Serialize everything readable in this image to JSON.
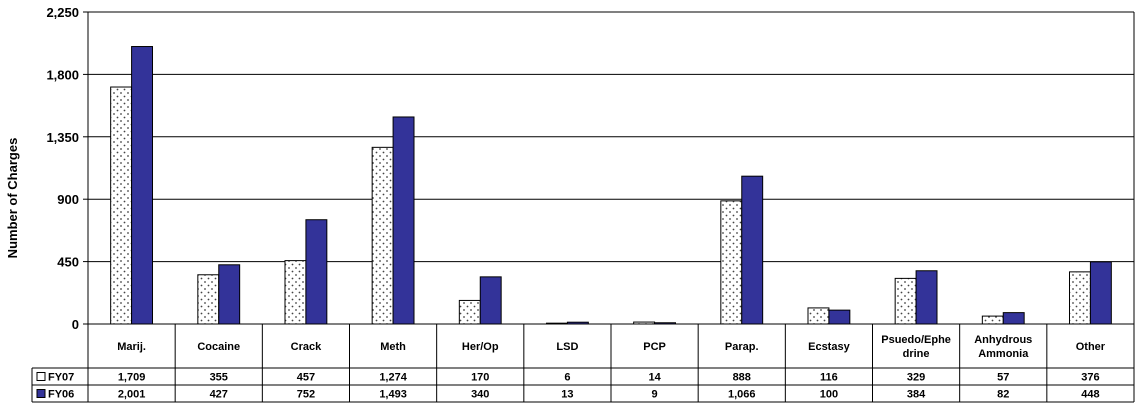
{
  "chart_data": {
    "type": "bar",
    "title": "",
    "xlabel": "",
    "ylabel": "Number of Charges",
    "ylim": [
      0,
      2250
    ],
    "yticks": [
      0,
      450,
      900,
      1350,
      1800,
      2250
    ],
    "ytick_labels": [
      "0",
      "450",
      "900",
      "1,350",
      "1,800",
      "2,250"
    ],
    "grid": true,
    "legend": "data-table-left",
    "categories": [
      "Marij.",
      "Cocaine",
      "Crack",
      "Meth",
      "Her/Op",
      "LSD",
      "PCP",
      "Parap.",
      "Ecstasy",
      "Psuedo/Ephedrine",
      "Anhydrous Ammonia",
      "Other"
    ],
    "category_labels": [
      [
        "Marij."
      ],
      [
        "Cocaine"
      ],
      [
        "Crack"
      ],
      [
        "Meth"
      ],
      [
        "Her/Op"
      ],
      [
        "LSD"
      ],
      [
        "PCP"
      ],
      [
        "Parap."
      ],
      [
        "Ecstasy"
      ],
      [
        "Psuedo/Ephe",
        "drine"
      ],
      [
        "Anhydrous",
        "Ammonia"
      ],
      [
        "Other"
      ]
    ],
    "series": [
      {
        "name": "FY07",
        "values": [
          1709,
          355,
          457,
          1274,
          170,
          6,
          14,
          888,
          116,
          329,
          57,
          376
        ],
        "value_labels": [
          "1,709",
          "355",
          "457",
          "1,274",
          "170",
          "6",
          "14",
          "888",
          "116",
          "329",
          "57",
          "376"
        ],
        "color": "#ffffff",
        "pattern": "dots"
      },
      {
        "name": "FY06",
        "values": [
          2001,
          427,
          752,
          1493,
          340,
          13,
          9,
          1066,
          100,
          384,
          82,
          448
        ],
        "value_labels": [
          "2,001",
          "427",
          "752",
          "1,493",
          "340",
          "13",
          "9",
          "1,066",
          "100",
          "384",
          "82",
          "448"
        ],
        "color": "#333399",
        "pattern": "solid"
      }
    ]
  }
}
